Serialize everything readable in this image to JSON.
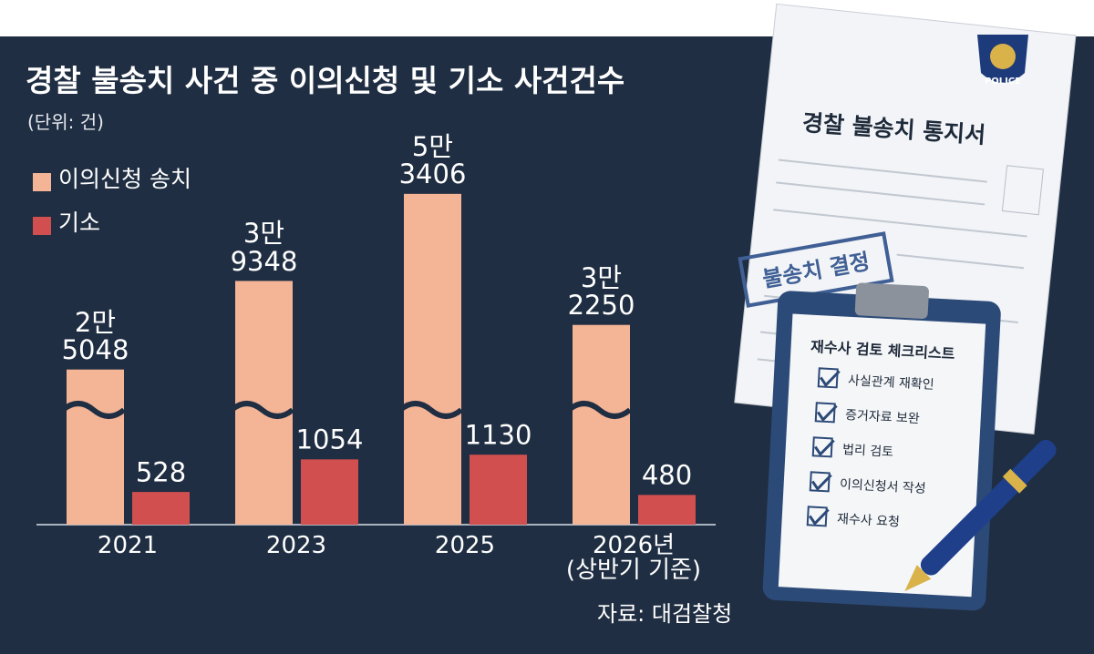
{
  "chart_data": {
    "type": "bar",
    "title": "경찰 불송치 사건 중 이의신청 및 기소 사건건수",
    "subtitle": "(단위: 건)",
    "source": "자료: 대검찰청",
    "categories": [
      "2021",
      "2023",
      "2025",
      "2026년\n(상반기 기준)"
    ],
    "series": [
      {
        "name": "이의신청 송치",
        "color": "#f4b496",
        "values": [
          25048,
          39348,
          53406,
          32250
        ],
        "value_labels": [
          "2만\n5048",
          "3만\n9348",
          "5만\n3406",
          "3만\n2250"
        ]
      },
      {
        "name": "기소",
        "color": "#d14f4f",
        "axis": "y2",
        "values": [
          528,
          1054,
          1130,
          480
        ]
      }
    ],
    "ylim": [
      0,
      60000
    ],
    "y2lim": [
      0,
      6000
    ]
  },
  "illustration": {
    "badge": "POLICE",
    "document_title": "경찰 불송치 통지서",
    "stamp": "불송치 결정",
    "checklist_title": "재수사 검토 체크리스트",
    "checklist_items": [
      "사실관계 재확인",
      "증거자료 보완",
      "법리 검토",
      "이의신청서 작성",
      "재수사 요청"
    ]
  }
}
